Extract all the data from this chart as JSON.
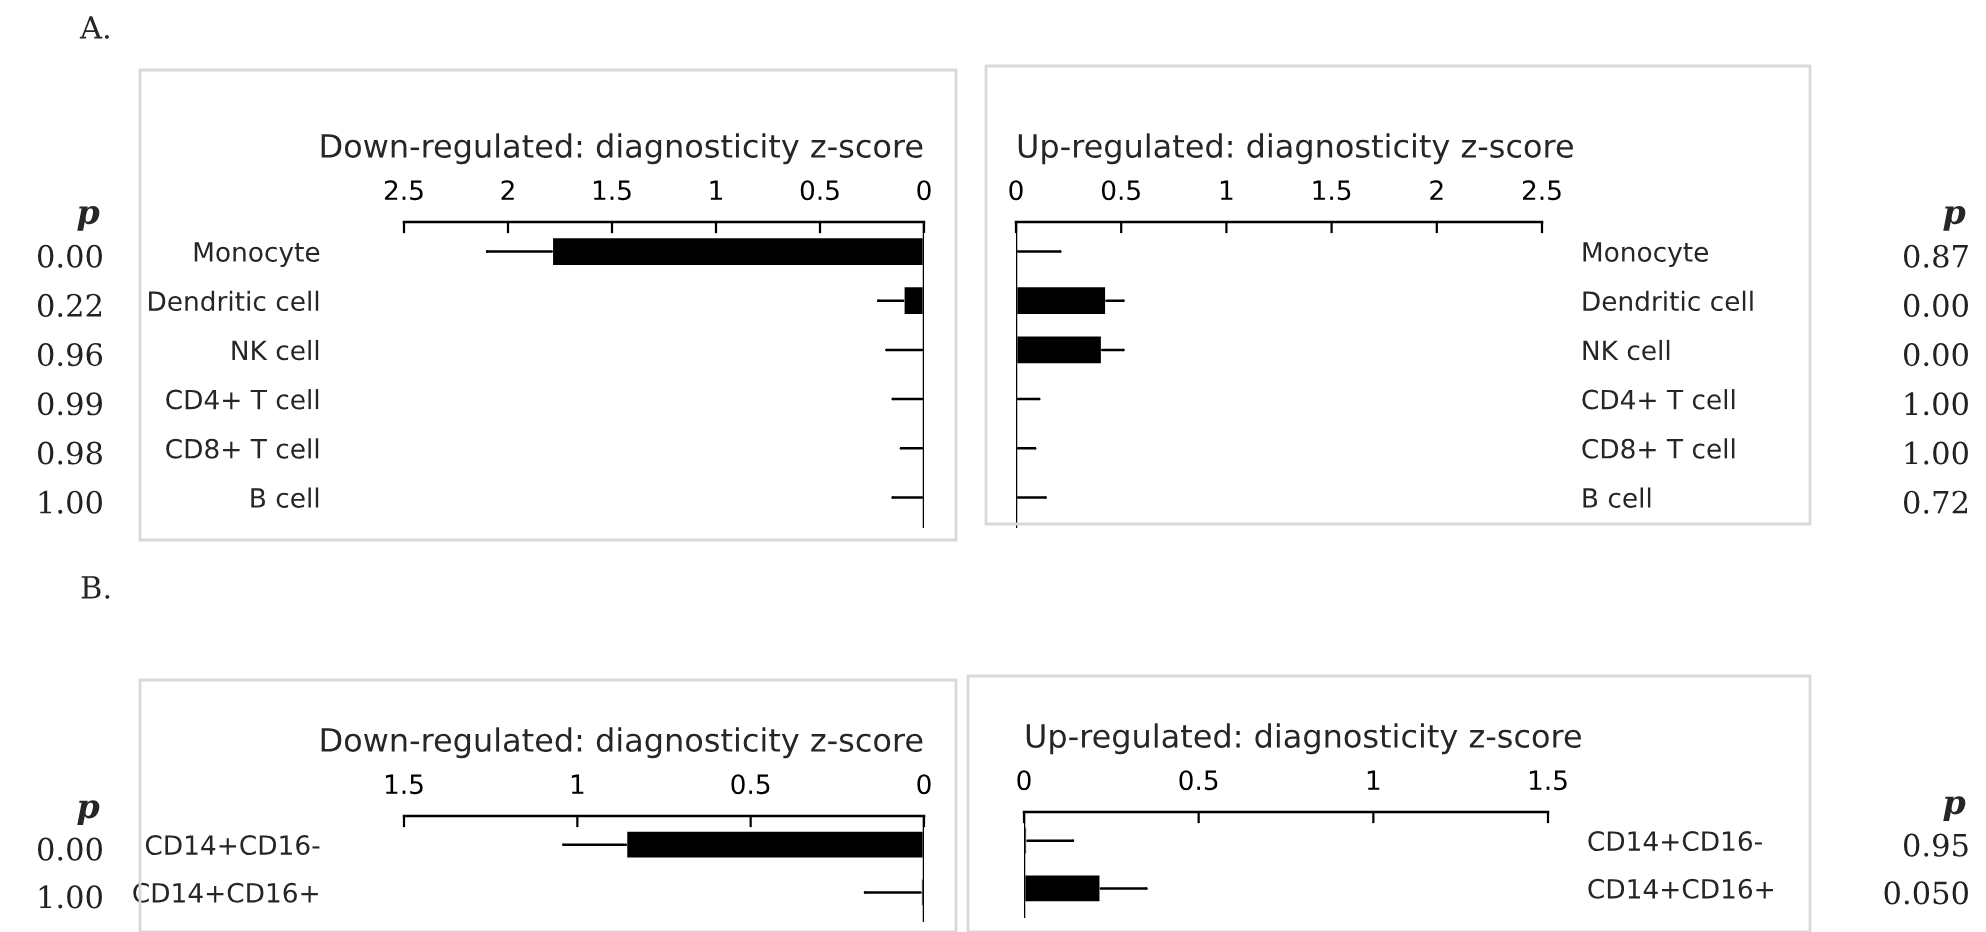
{
  "chart_data": [
    {
      "type": "bar",
      "orientation": "horizontal",
      "xlabel": "Down-regulated: diagnosticity z-score",
      "categories": [
        "Monocyte",
        "Dendritic cell",
        "NK cell",
        "CD4+ T cell",
        "CD8+ T cell",
        "B cell"
      ],
      "values": [
        1.79,
        0.1,
        0.01,
        0.01,
        0.01,
        0.01
      ],
      "errors": [
        [
          1.79,
          2.1
        ],
        [
          0.1,
          0.22
        ],
        [
          0.01,
          0.18
        ],
        [
          0.01,
          0.15
        ],
        [
          0.01,
          0.11
        ],
        [
          0.01,
          0.15
        ]
      ],
      "color": "#000000",
      "xlim": [
        2.5,
        0
      ],
      "xticks": [
        2.5,
        2,
        1.5,
        1,
        0.5,
        0
      ],
      "annotations": [
        "A.",
        "p",
        "0.00",
        "0.22",
        "0.96",
        "0.99",
        "0.98",
        "1.00"
      ]
    },
    {
      "type": "bar",
      "orientation": "horizontal",
      "xlabel": "Up-regulated: diagnosticity z-score",
      "categories": [
        "Monocyte",
        "Dendritic cell",
        "NK cell",
        "CD4+ T cell",
        "CD8+ T cell",
        "B cell"
      ],
      "values": [
        0.01,
        0.43,
        0.41,
        0.01,
        0.01,
        0.01
      ],
      "errors": [
        [
          0.01,
          0.21
        ],
        [
          0.43,
          0.51
        ],
        [
          0.41,
          0.51
        ],
        [
          0.01,
          0.11
        ],
        [
          0.01,
          0.09
        ],
        [
          0.01,
          0.14
        ]
      ],
      "color": "#000000",
      "xlim": [
        0,
        2.5
      ],
      "xticks": [
        0,
        0.5,
        1,
        1.5,
        2,
        2.5
      ],
      "annotations": [
        "p",
        "0.87",
        "0.00",
        "0.00",
        "1.00",
        "1.00",
        "0.72"
      ]
    },
    {
      "type": "bar",
      "orientation": "horizontal",
      "xlabel": "Down-regulated: diagnosticity z-score",
      "categories": [
        "CD14+CD16-",
        "CD14+CD16+"
      ],
      "values": [
        0.86,
        0.01
      ],
      "errors": [
        [
          0.86,
          1.04
        ],
        [
          0.01,
          0.17
        ]
      ],
      "color": "#000000",
      "xlim": [
        1.5,
        0
      ],
      "xticks": [
        1.5,
        1,
        0.5,
        0
      ],
      "annotations": [
        "B.",
        "p",
        "0.00",
        "1.00"
      ]
    },
    {
      "type": "bar",
      "orientation": "horizontal",
      "xlabel": "Up-regulated: diagnosticity z-score",
      "categories": [
        "CD14+CD16-",
        "CD14+CD16+"
      ],
      "values": [
        0.01,
        0.22
      ],
      "errors": [
        [
          0.01,
          0.14
        ],
        [
          0.22,
          0.35
        ]
      ],
      "color": "#000000",
      "xlim": [
        0,
        1.5
      ],
      "xticks": [
        0,
        0.5,
        1,
        1.5
      ],
      "annotations": [
        "p",
        "0.95",
        "0.050"
      ]
    }
  ]
}
